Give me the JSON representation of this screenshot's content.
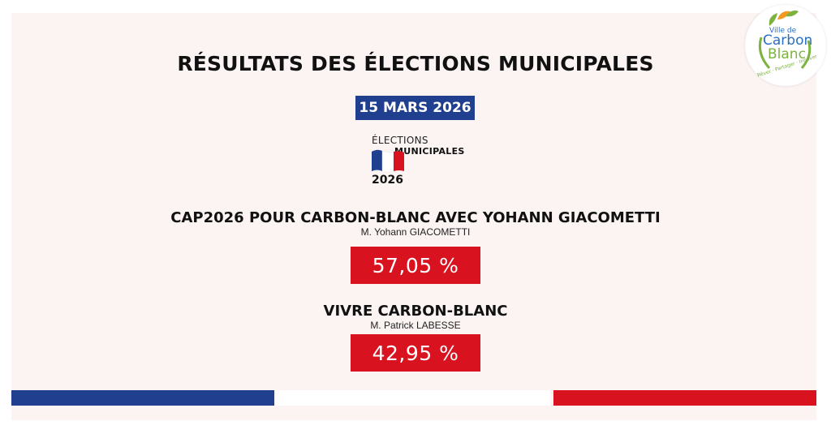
{
  "title": "RÉSULTATS DES ÉLECTIONS MUNICIPALES",
  "date": "15 MARS 2026",
  "elections_logo": {
    "line1": "ÉLECTIONS",
    "line2": "MUNICIPALES",
    "line3": "2026"
  },
  "lists": [
    {
      "name": "CAP2026 POUR CARBON-BLANC AVEC YOHANN GIACOMETTI",
      "candidate": "M. Yohann GIACOMETTI",
      "score": "57,05 %"
    },
    {
      "name": "VIVRE CARBON-BLANC",
      "candidate": "M. Patrick LABESSE",
      "score": "42,95 %"
    }
  ],
  "city_logo": {
    "line1": "Ville de",
    "line2": "Carbon",
    "line3": "Blanc",
    "tagline": "Rêver · Partager · Innover"
  },
  "colors": {
    "blue": "#203f8f",
    "red": "#d9121f",
    "white": "#ffffff",
    "logo_blue": "#2a6fc4",
    "logo_green": "#7cb33f",
    "logo_orange": "#f29a1f"
  }
}
